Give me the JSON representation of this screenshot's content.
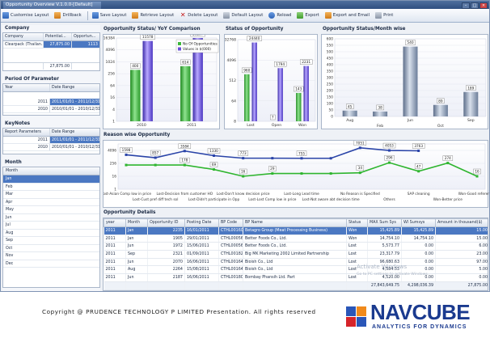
{
  "window": {
    "title": "Opportunity Overview V.1.0.0-[Default]"
  },
  "toolbar": [
    {
      "label": "Customise Layout",
      "icon": "customise-icon"
    },
    {
      "label": "Drillback",
      "icon": "drillback-icon"
    },
    {
      "label": "Save Layout",
      "icon": "save-icon"
    },
    {
      "label": "Retrieve Layout",
      "icon": "retrieve-icon"
    },
    {
      "label": "Delete Layout",
      "icon": "delete-icon"
    },
    {
      "label": "Default Layout",
      "icon": "default-layout-icon"
    },
    {
      "label": "Reload",
      "icon": "reload-icon"
    },
    {
      "label": "Export",
      "icon": "export-icon"
    },
    {
      "label": "Export and Email",
      "icon": "email-icon"
    },
    {
      "label": "Print",
      "icon": "print-icon"
    }
  ],
  "company": {
    "title": "Company",
    "headers": [
      "Company",
      "Potential...",
      "Opportun..."
    ],
    "row": [
      "Clearpack (Thailan...",
      "27,875.00",
      "1113"
    ],
    "total": "27,875.00"
  },
  "period": {
    "title": "Period Of Parameter",
    "headers": [
      "Year",
      "Date Range"
    ],
    "rows": [
      {
        "year": "2011",
        "range": "2011/01/01 - 2011/12/31",
        "selected": true
      },
      {
        "year": "2010",
        "range": "2010/01/01 - 2010/12/31",
        "selected": false
      }
    ]
  },
  "keynotes": {
    "title": "KeyNotes",
    "headers": [
      "Report Parameters",
      "Date Range"
    ],
    "rows": [
      {
        "param": "2011",
        "range": "2011/01/01 - 2011/12/31",
        "selected": true
      },
      {
        "param": "2010",
        "range": "2010/01/01 - 2010/12/31",
        "selected": false
      }
    ]
  },
  "month": {
    "title": "Month",
    "header": "Month",
    "items": [
      "Jan",
      "Feb",
      "Mar",
      "Apr",
      "May",
      "Jun",
      "Jul",
      "Aug",
      "Sep",
      "Oct",
      "Nov",
      "Dec"
    ],
    "selected_index": 0
  },
  "chart_data": [
    {
      "type": "bar",
      "title": "Opportunity Status/ YoY Comparison",
      "categories": [
        "2010",
        "2011"
      ],
      "series": [
        {
          "name": "No Of Opportunities",
          "values": [
            400,
            614
          ],
          "color": "#3cb83c"
        },
        {
          "name": "Values in $(000)",
          "values": [
            11578,
            16297
          ],
          "color": "#6a4fd8"
        }
      ],
      "data_labels": [
        "400",
        "11578",
        "614",
        "16297"
      ],
      "y_ticks": [
        "1",
        "4",
        "16",
        "64",
        "256",
        "1024",
        "4096",
        "16384"
      ],
      "scale": "log2",
      "legend": "top-right"
    },
    {
      "type": "bar",
      "title": "Status of Opportunity",
      "categories": [
        "Lost",
        "Open",
        "Won"
      ],
      "series": [
        {
          "name": "Count",
          "values": [
            960,
            7,
            143
          ],
          "color": "#3cb83c"
        },
        {
          "name": "Value",
          "values": [
            24440,
            1794,
            2231
          ],
          "color": "#6a4fd8"
        }
      ],
      "data_labels": [
        "960",
        "24440",
        "7",
        "1794",
        "143",
        "2231"
      ],
      "y_ticks": [
        "8",
        "64",
        "512",
        "4096",
        "32768"
      ],
      "scale": "log2"
    },
    {
      "type": "bar",
      "title": "Opportunity Status/Month wise",
      "categories": [
        "Aug",
        "Feb",
        "Jun",
        "Oct",
        "Sep"
      ],
      "series": [
        {
          "name": "Value",
          "values": [
            45,
            38,
            540,
            89,
            189
          ],
          "color": "#8ea0b8"
        }
      ],
      "data_labels": [
        "45",
        "38",
        "540",
        "89",
        "189"
      ],
      "y_ticks": [
        "0",
        "50",
        "100",
        "150",
        "200",
        "250",
        "300",
        "350",
        "400",
        "450",
        "500",
        "550",
        "600"
      ],
      "ylim": [
        0,
        600
      ]
    },
    {
      "type": "line",
      "title": "Reason wise Opportunity",
      "categories": [
        "Lost-Asian Comp low in price",
        "Lost-Cust pref diff tech sol",
        "Lost-Decision from customer HO",
        "Lost-Didn't participate in Opp",
        "Lost-Don't know decision price",
        "Lost-Lost Comp low in price",
        "Lost-Long Lead time",
        "Lost-Not aware abt decision time",
        "No Reason is Specified",
        "Others",
        "SAP cleaning",
        "Won-Better price",
        "Won-Good references"
      ],
      "series": [
        {
          "name": "Value",
          "color": "#2a44a8",
          "values": [
            1598,
            857,
            3584,
            1330,
            773,
            773,
            755,
            755,
            7051,
            4053,
            3763,
            null,
            null
          ],
          "labels": [
            "1598",
            "857",
            "3584",
            "1330",
            "773",
            "",
            "755",
            "",
            "7051",
            "4053",
            "3763",
            "",
            ""
          ]
        },
        {
          "name": "Count",
          "color": "#2fb52f",
          "values": [
            178,
            178,
            178,
            69,
            16,
            29,
            29,
            29,
            34,
            296,
            47,
            274,
            16
          ],
          "labels": [
            "",
            "",
            "178",
            "69",
            "16",
            "29",
            "",
            "",
            "34",
            "296",
            "47",
            "274",
            "16"
          ]
        }
      ],
      "x_tick_labels_top": [
        "Lost-Asian Comp low in price",
        "Lost-Decision from customer HO",
        "Lost-Don't know decision price",
        "Lost-Long Lead time",
        "No Reason is Specified",
        "SAP cleaning",
        "Won-Good references"
      ],
      "x_tick_labels_bottom": [
        "Lost-Cust pref diff tech sol",
        "Lost-Didn't participate in Opp",
        "Lost-Lost Comp low in price",
        "Lost-Not aware abt decision time",
        "Others",
        "Won-Better price"
      ],
      "y_ticks": [
        "1",
        "16",
        "256",
        "4096"
      ],
      "scale": "log2"
    }
  ],
  "details": {
    "title": "Opportunity Details",
    "headers": [
      "year",
      "Month",
      "Opportunity ID",
      "Posting Date",
      "BP Code",
      "BP Name",
      "Status",
      "MAX Sum Sys",
      "WI Sumsys",
      "Amount in thousand($)"
    ],
    "rows": [
      {
        "cells": [
          "2011",
          "Jan",
          "2235",
          "16/01/2011",
          "CTHL00160",
          "Betagro Group (Meat Processing Business)",
          "Won",
          "15,425.89",
          "15,425.89",
          "15.00"
        ],
        "selected": true
      },
      {
        "cells": [
          "2011",
          "Jan",
          "1905",
          "29/01/2011",
          "CTHL00056",
          "Better Foods Co., Ltd.",
          "Won",
          "14,754.10",
          "14,754.10",
          "15.00"
        ],
        "selected": false
      },
      {
        "cells": [
          "2011",
          "Jun",
          "1972",
          "15/06/2011",
          "CTHL00056",
          "Better Foods Co., Ltd.",
          "Lost",
          "5,573.77",
          "0.00",
          "6.00"
        ],
        "selected": false
      },
      {
        "cells": [
          "2011",
          "Sep",
          "2321",
          "01/09/2011",
          "CTHL00182",
          "Big MK Marketing 2002 Limited Partnership",
          "Lost",
          "23,317.79",
          "0.00",
          "23.00"
        ],
        "selected": false
      },
      {
        "cells": [
          "2011",
          "Jun",
          "2070",
          "16/06/2011",
          "CTHL00164",
          "Bioish Co., Ltd",
          "Lost",
          "96,680.63",
          "0.00",
          "97.00"
        ],
        "selected": false
      },
      {
        "cells": [
          "2011",
          "Aug",
          "2264",
          "15/08/2011",
          "CTHL00164",
          "Bioish Co., Ltd",
          "Lost",
          "4,584.53",
          "0.00",
          "5.00"
        ],
        "selected": false
      },
      {
        "cells": [
          "2011",
          "Jun",
          "2187",
          "16/06/2011",
          "CTHL00180",
          "Bombay Phansih Ltd. Part",
          "Lost",
          "4,520.00",
          "0.00",
          "0.00"
        ],
        "selected": false
      }
    ],
    "totals": [
      "27,843,649.75",
      "4,298,036.39",
      "27,875.00"
    ]
  },
  "watermark": {
    "line1": "Activate Windows",
    "line2": "Go to PC settings to activate Windows."
  },
  "footer": {
    "copyright": "Copyright @ PRUDENCE TECHNOLOGY P LIMITED Presentation. All rights reserved",
    "logo_name": "NAVCUBE",
    "logo_tag": "ANALYTICS FOR DYNAMICS"
  }
}
